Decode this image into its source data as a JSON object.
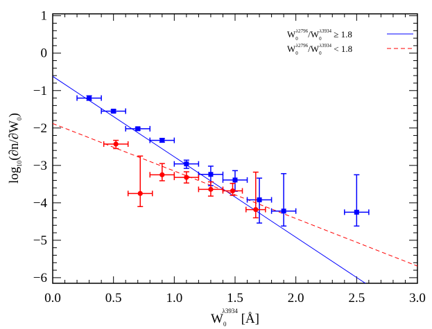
{
  "chart_data": {
    "type": "scatter",
    "title": "",
    "xlabel": {
      "base": "W",
      "sub": "0",
      "sup": "λ3934",
      "tail": " [Å]"
    },
    "ylabel": {
      "pre": "log",
      "sub": "10",
      "mid": "(∂n/∂W",
      "sub2": "0",
      "post": ")"
    },
    "xlim": [
      0.0,
      3.0
    ],
    "ylim": [
      -6.15,
      1.05
    ],
    "xticks": [
      0.0,
      0.5,
      1.0,
      1.5,
      2.0,
      2.5,
      3.0
    ],
    "xtick_labels": [
      "0.0",
      "0.5",
      "1.0",
      "1.5",
      "2.0",
      "2.5",
      "3.0"
    ],
    "yticks": [
      1,
      0,
      -1,
      -2,
      -3,
      -4,
      -5,
      -6
    ],
    "ytick_labels": [
      "1",
      "0",
      "−1",
      "−2",
      "−3",
      "−4",
      "−5",
      "−6"
    ],
    "legend_position": "top-right",
    "series": [
      {
        "name": "W0λ2796/W0λ3934 ≥ 1.8",
        "legend": {
          "w": "W",
          "sub": "0",
          "sup": "λ2796",
          "sep": "/W",
          "sub2": "0",
          "sup2": "λ3934",
          "cond": " ≥ 1.8"
        },
        "color": "#0000ff",
        "marker": "square",
        "line_style": "solid",
        "fit": {
          "intercept": -0.62,
          "slope": -2.15
        },
        "points": [
          {
            "x": 0.3,
            "y": -1.2,
            "xerr": 0.1,
            "yerr_low": 0.06,
            "yerr_high": 0.06
          },
          {
            "x": 0.5,
            "y": -1.55,
            "xerr": 0.1,
            "yerr_low": 0.04,
            "yerr_high": 0.04
          },
          {
            "x": 0.7,
            "y": -2.02,
            "xerr": 0.1,
            "yerr_low": 0.04,
            "yerr_high": 0.04
          },
          {
            "x": 0.9,
            "y": -2.33,
            "xerr": 0.1,
            "yerr_low": 0.05,
            "yerr_high": 0.05
          },
          {
            "x": 1.1,
            "y": -2.96,
            "xerr": 0.1,
            "yerr_low": 0.12,
            "yerr_high": 0.1
          },
          {
            "x": 1.3,
            "y": -3.24,
            "xerr": 0.1,
            "yerr_low": 0.3,
            "yerr_high": 0.22
          },
          {
            "x": 1.5,
            "y": -3.39,
            "xerr": 0.1,
            "yerr_low": 0.3,
            "yerr_high": 0.25
          },
          {
            "x": 1.7,
            "y": -3.92,
            "xerr": 0.1,
            "yerr_low": 0.62,
            "yerr_high": 0.58
          },
          {
            "x": 1.9,
            "y": -4.22,
            "xerr": 0.1,
            "yerr_low": 0.4,
            "yerr_high": 1.0
          },
          {
            "x": 2.5,
            "y": -4.25,
            "xerr": 0.1,
            "yerr_low": 0.37,
            "yerr_high": 1.0
          }
        ]
      },
      {
        "name": "W0λ2796/W0λ3934 < 1.8",
        "legend": {
          "w": "W",
          "sub": "0",
          "sup": "λ2796",
          "sep": "/W",
          "sub2": "0",
          "sup2": "λ3934",
          "cond": " < 1.8"
        },
        "color": "#ff0000",
        "marker": "circle",
        "line_style": "dashed",
        "fit": {
          "intercept": -1.88,
          "slope": -1.27
        },
        "points": [
          {
            "x": 0.52,
            "y": -2.43,
            "xerr": 0.1,
            "yerr_low": 0.12,
            "yerr_high": 0.1
          },
          {
            "x": 0.72,
            "y": -3.75,
            "xerr": 0.1,
            "yerr_low": 0.35,
            "yerr_high": 1.0
          },
          {
            "x": 0.9,
            "y": -3.25,
            "xerr": 0.1,
            "yerr_low": 0.16,
            "yerr_high": 0.3
          },
          {
            "x": 1.1,
            "y": -3.32,
            "xerr": 0.1,
            "yerr_low": 0.15,
            "yerr_high": 0.15
          },
          {
            "x": 1.3,
            "y": -3.64,
            "xerr": 0.1,
            "yerr_low": 0.18,
            "yerr_high": 0.2
          },
          {
            "x": 1.48,
            "y": -3.68,
            "xerr": 0.08,
            "yerr_low": 0.12,
            "yerr_high": 0.2
          },
          {
            "x": 1.67,
            "y": -4.18,
            "xerr": 0.08,
            "yerr_low": 0.22,
            "yerr_high": 1.0
          }
        ]
      }
    ]
  }
}
